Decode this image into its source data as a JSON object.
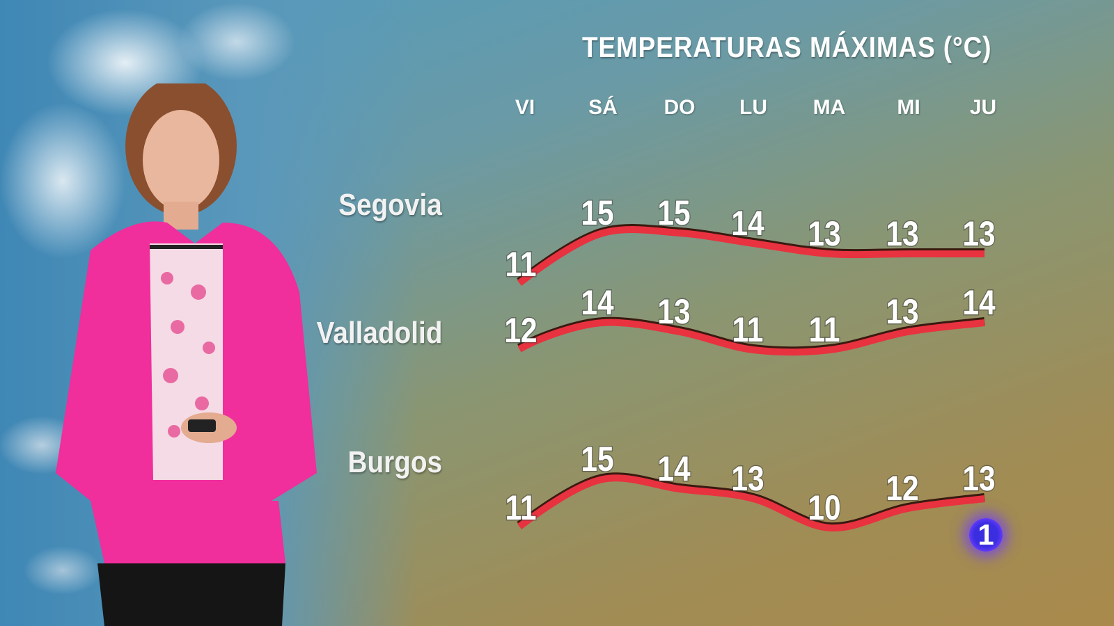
{
  "chart_data": {
    "type": "line",
    "title": "TEMPERATURAS MÁXIMAS (°C)",
    "categories": [
      "VI",
      "SÁ",
      "DO",
      "LU",
      "MA",
      "MI",
      "JU"
    ],
    "series": [
      {
        "name": "Segovia",
        "values": [
          11,
          15,
          15,
          14,
          13,
          13,
          13
        ]
      },
      {
        "name": "Valladolid",
        "values": [
          12,
          14,
          13,
          11,
          11,
          13,
          14
        ]
      },
      {
        "name": "Burgos",
        "values": [
          11,
          15,
          14,
          13,
          10,
          12,
          13
        ]
      }
    ],
    "data_labels": true,
    "grid": false,
    "colors": {
      "line": "#e8323f",
      "text": "#ffffff"
    }
  },
  "logo": {
    "text": "1",
    "color": "#3b2ee0"
  }
}
